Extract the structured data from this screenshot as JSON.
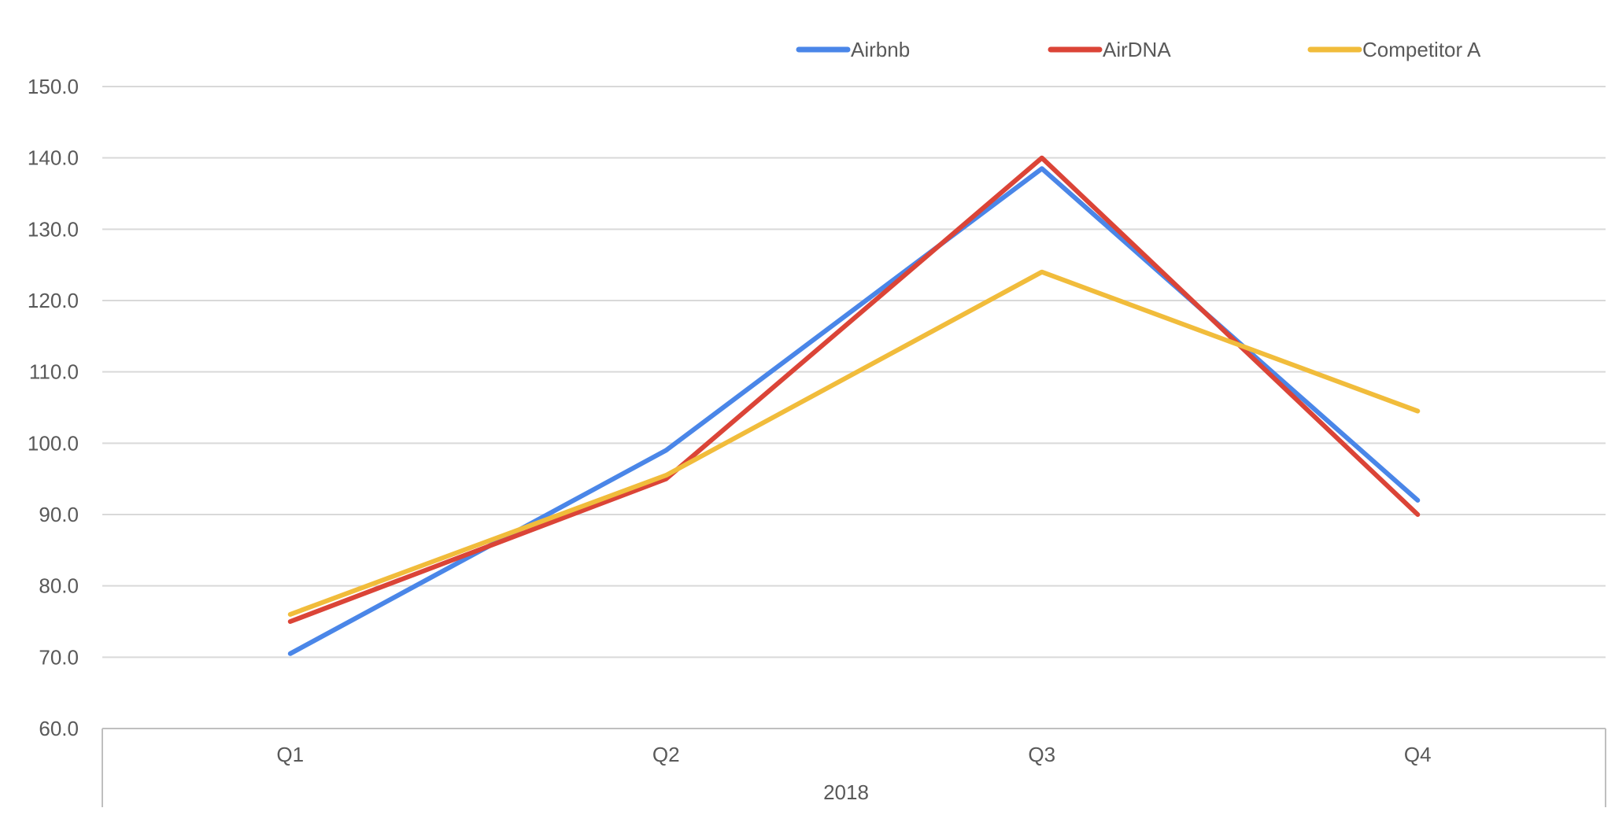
{
  "chart_data": {
    "type": "line",
    "categories": [
      "Q1",
      "Q2",
      "Q3",
      "Q4"
    ],
    "group_label": "2018",
    "ylim": [
      60,
      150
    ],
    "yticks": [
      60,
      70,
      80,
      90,
      100,
      110,
      120,
      130,
      140,
      150
    ],
    "ytick_format": "0.0",
    "grid": true,
    "legend_position": "top-right",
    "series": [
      {
        "name": "Airbnb",
        "color": "#4a86e8",
        "values": [
          70.5,
          99.0,
          138.5,
          92.0
        ]
      },
      {
        "name": "AirDNA",
        "color": "#db4437",
        "values": [
          75.0,
          95.0,
          140.0,
          90.0
        ]
      },
      {
        "name": "Competitor A",
        "color": "#f1bc3b",
        "values": [
          76.0,
          95.5,
          124.0,
          104.5
        ]
      }
    ]
  }
}
